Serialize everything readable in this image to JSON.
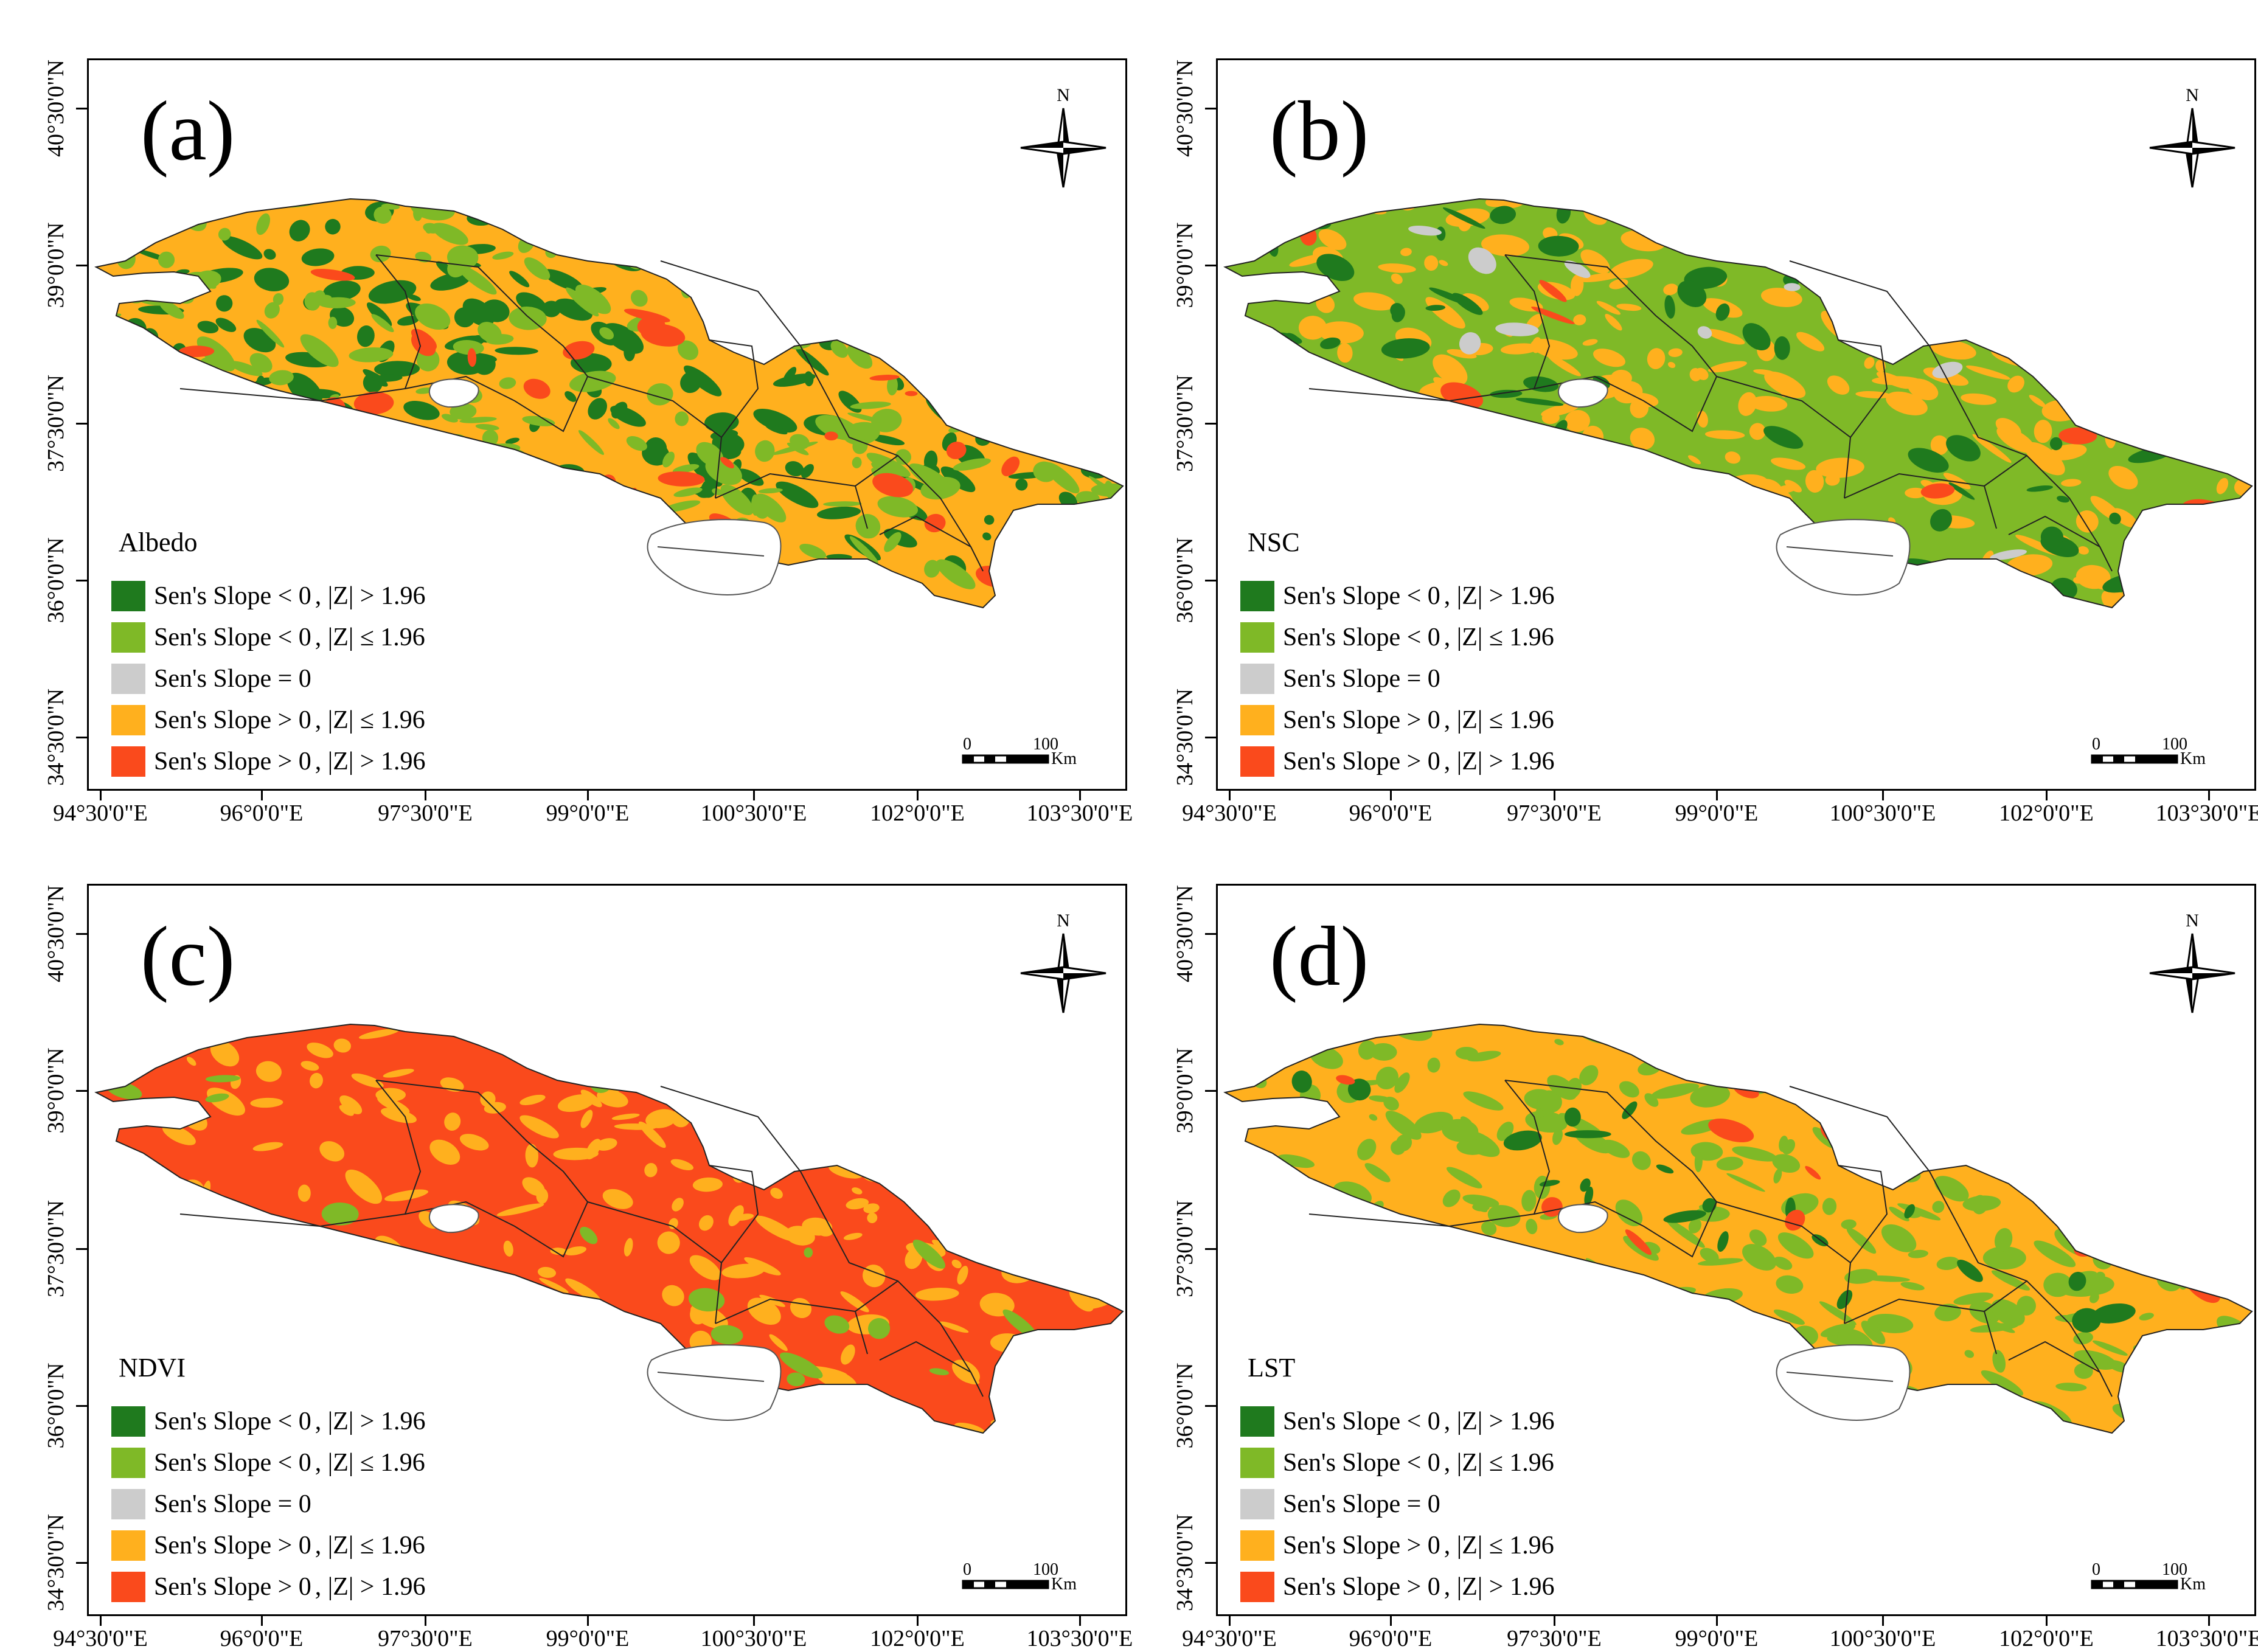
{
  "colors": {
    "sig_neg": "#1f7a1e",
    "neg": "#7fb927",
    "zero": "#cccccc",
    "pos": "#ffb01e",
    "sig_pos": "#fa4a1c"
  },
  "legend": {
    "items": [
      {
        "label": "Sen's Slope < 0",
        "cond": "|Z| > 1.96",
        "color_key": "sig_neg"
      },
      {
        "label": "Sen's Slope < 0",
        "cond": "|Z| ≤ 1.96",
        "color_key": "neg"
      },
      {
        "label": "Sen's Slope = 0",
        "cond": "",
        "color_key": "zero"
      },
      {
        "label": "Sen's Slope > 0",
        "cond": "|Z| ≤ 1.96",
        "color_key": "pos"
      },
      {
        "label": "Sen's Slope > 0",
        "cond": "|Z| > 1.96",
        "color_key": "sig_pos"
      }
    ]
  },
  "axes": {
    "latitude": [
      "40°30'0\"N",
      "39°0'0\"N",
      "37°30'0\"N",
      "36°0'0\"N",
      "34°30'0\"N"
    ],
    "longitude": [
      "94°30'0\"E",
      "96°0'0\"E",
      "97°30'0\"E",
      "99°0'0\"E",
      "100°30'0\"E",
      "102°0'0\"E",
      "103°30'0\"E"
    ]
  },
  "compass": {
    "north": "N"
  },
  "scalebar": {
    "start": "0",
    "end": "100",
    "unit": "Km"
  },
  "panels": [
    {
      "label": "(a)",
      "variable": "Albedo",
      "base": "pos",
      "patches": [
        [
          "sig_neg",
          0.3
        ],
        [
          "neg",
          0.35
        ],
        [
          "sig_pos",
          0.07
        ]
      ]
    },
    {
      "label": "(b)",
      "variable": "NSC",
      "base": "neg",
      "patches": [
        [
          "pos",
          0.4
        ],
        [
          "sig_neg",
          0.12
        ],
        [
          "zero",
          0.02
        ],
        [
          "sig_pos",
          0.02
        ]
      ]
    },
    {
      "label": "(c)",
      "variable": "NDVI",
      "base": "sig_pos",
      "patches": [
        [
          "pos",
          0.28
        ],
        [
          "neg",
          0.04
        ]
      ]
    },
    {
      "label": "(d)",
      "variable": "LST",
      "base": "pos",
      "patches": [
        [
          "neg",
          0.38
        ],
        [
          "sig_neg",
          0.06
        ],
        [
          "sig_pos",
          0.02
        ]
      ]
    }
  ]
}
